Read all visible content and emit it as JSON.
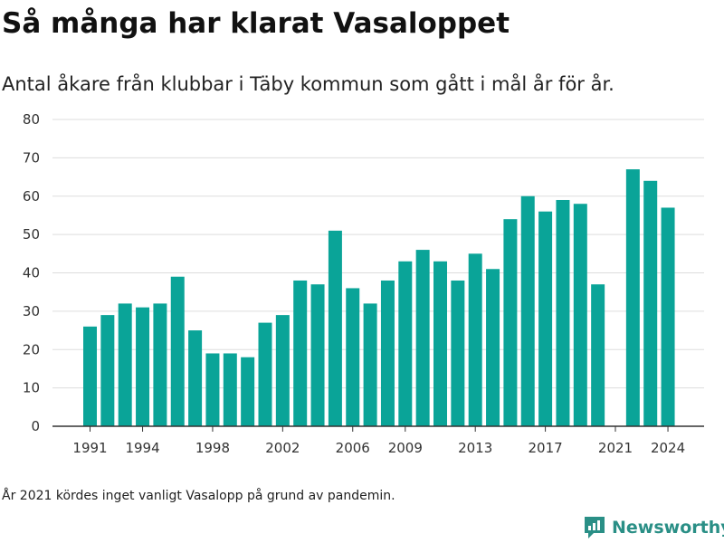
{
  "header": {
    "title": "Så många har klarat Vasaloppet",
    "subtitle": "Antal åkare från klubbar i Täby kommun som gått i mål år för år."
  },
  "footer": {
    "note": "År 2021 kördes inget vanligt Vasalopp på grund av pandemin.",
    "brand": "Newsworthy",
    "brand_icon": "newsworthy-logo-icon",
    "brand_color": "#2a8f86"
  },
  "chart_data": {
    "type": "bar",
    "title": "Så många har klarat Vasaloppet",
    "subtitle": "Antal åkare från klubbar i Täby kommun som gått i mål år för år.",
    "xlabel": "",
    "ylabel": "",
    "categories": [
      1991,
      1992,
      1993,
      1994,
      1995,
      1996,
      1997,
      1998,
      1999,
      2000,
      2001,
      2002,
      2003,
      2004,
      2005,
      2006,
      2007,
      2008,
      2009,
      2010,
      2011,
      2012,
      2013,
      2014,
      2015,
      2016,
      2017,
      2018,
      2019,
      2020,
      2021,
      2022,
      2023,
      2024
    ],
    "values": [
      26,
      29,
      32,
      31,
      32,
      39,
      25,
      19,
      19,
      18,
      27,
      29,
      38,
      37,
      51,
      36,
      32,
      38,
      43,
      46,
      43,
      38,
      45,
      41,
      54,
      60,
      56,
      59,
      58,
      37,
      null,
      67,
      64,
      57
    ],
    "x_tick_labels": [
      1991,
      1994,
      1998,
      2002,
      2006,
      2009,
      2013,
      2017,
      2021,
      2024
    ],
    "y_ticks": [
      0,
      10,
      20,
      30,
      40,
      50,
      60,
      70,
      80
    ],
    "ylim": [
      0,
      80
    ],
    "grid": true,
    "bar_color": "#0aa498",
    "grid_color": "#dddddd",
    "axis_color": "#333333"
  }
}
